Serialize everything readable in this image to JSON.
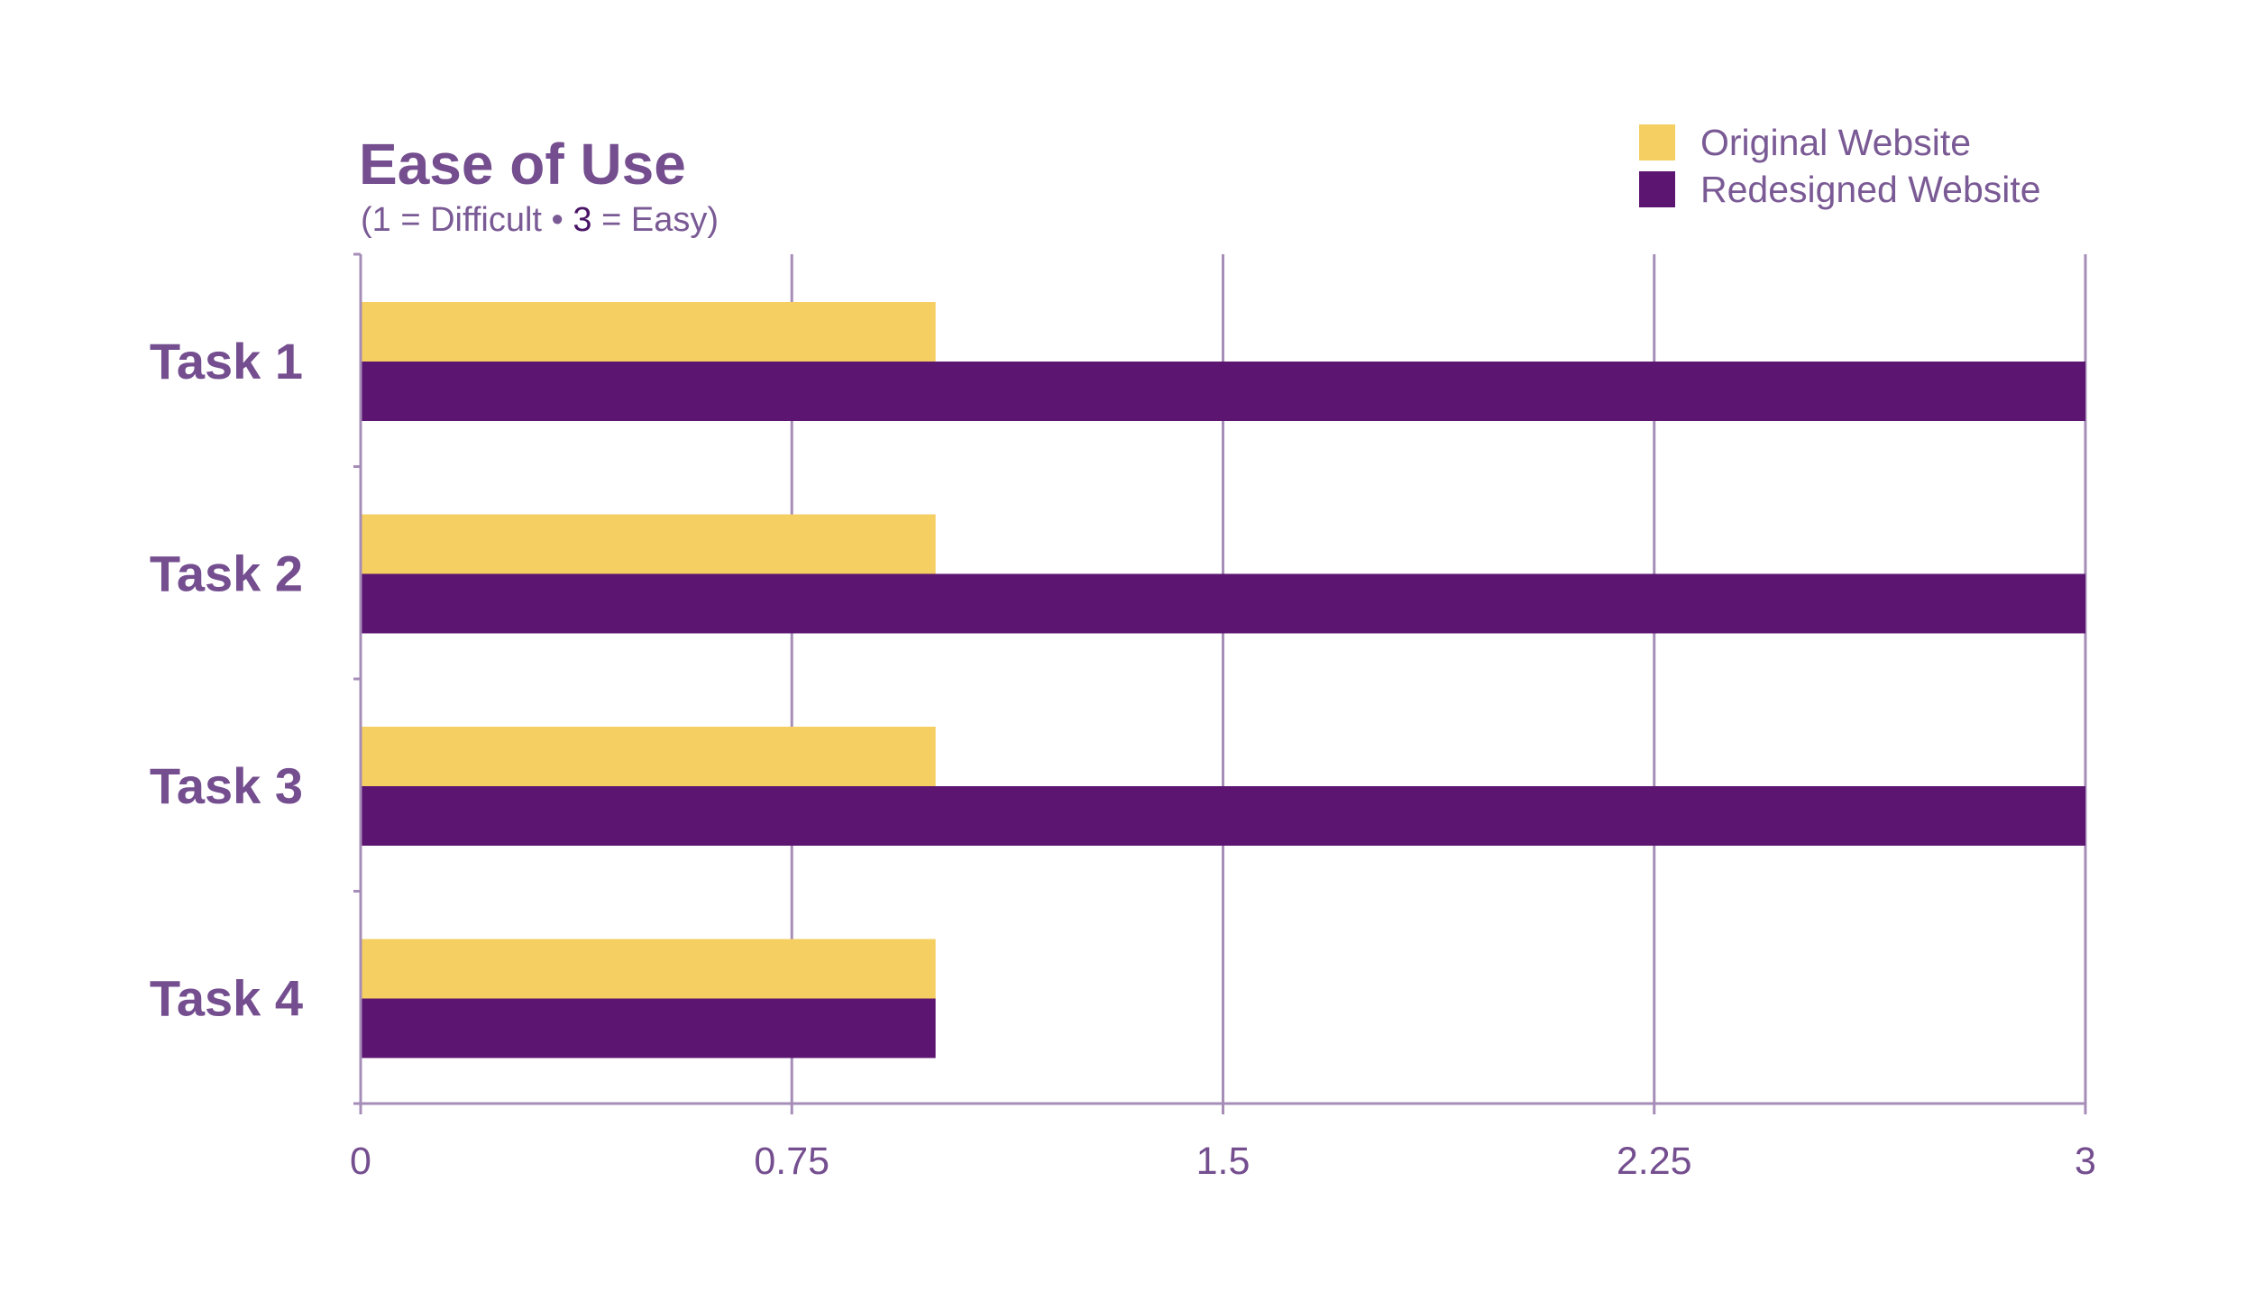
{
  "chart_data": {
    "type": "bar",
    "orientation": "horizontal",
    "title": "Ease of Use",
    "subtitle": {
      "prefix": "(1 = Difficult • ",
      "highlight": "3",
      "suffix": " = Easy)"
    },
    "categories": [
      "Task 1",
      "Task 2",
      "Task 3",
      "Task 4"
    ],
    "series": [
      {
        "name": "Original Website",
        "color": "#f5cf62",
        "values": [
          1,
          1,
          1,
          1
        ]
      },
      {
        "name": "Redesigned Website",
        "color": "#5c1571",
        "values": [
          3,
          3,
          3,
          1
        ]
      }
    ],
    "xlim": [
      0,
      3
    ],
    "xticks": [
      0,
      0.75,
      1.5,
      2.25,
      3
    ],
    "xtick_labels": [
      "0",
      "0.75",
      "1.5",
      "2.25",
      "3"
    ],
    "xlabel": "",
    "ylabel": "",
    "grid": true,
    "legend_position": "top-right"
  },
  "colors": {
    "title": "#744e8f",
    "axis_text": "#744e8f",
    "grid": "#a68db8"
  }
}
